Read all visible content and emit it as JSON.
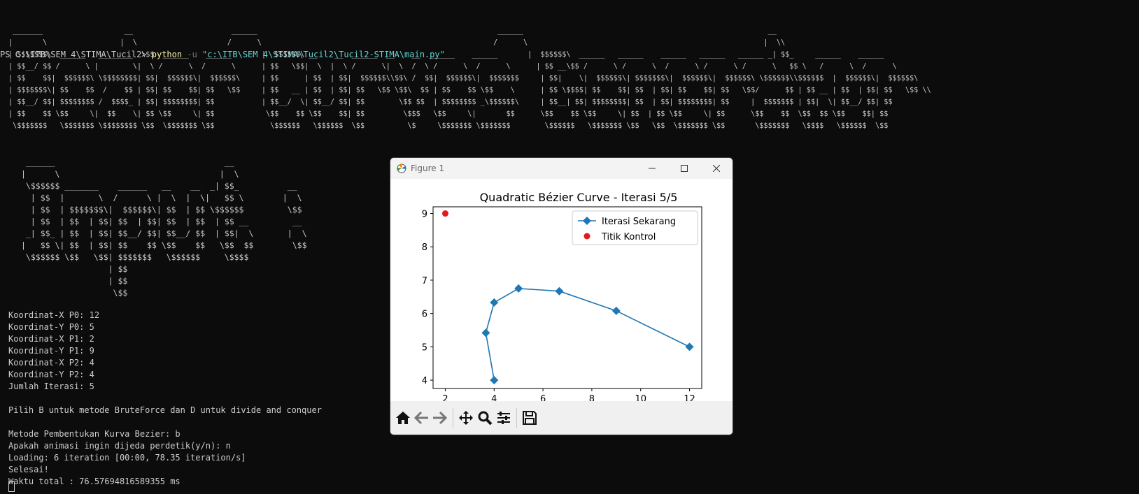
{
  "terminal": {
    "prompt": "PS C:\\ITB\\SEM 4\\STIMA\\Tucil2>",
    "command": "python",
    "flag": "-u",
    "arg": "\"c:\\ITB\\SEM 4\\STIMA\\Tucil2\\Tucil2-STIMA\\main.py\"",
    "banner1": [
      " _______                   __                       ______                                                        ______                                                         __",
      "|       \\                 |  \\                     /      \\                                                      /      \\                                                       |  \\\\",
      "| $$$$$$$\\  ______   ________  \\$$  ______    ______       |  $$$$$$\\ __    __  ______  __    __  ______    ______       |  $$$$$$\\  ______   ______    ______   ______   ______ _| $$_     ______    ______",
      "| $$__/ $$ /      \\ |        \\|  \\ /      \\  /      \\      | $$   \\$$|  \\  |  \\ /      \\|  \\  /  \\ /      \\  /      \\      | $$ __\\$$ /      \\ /      \\  /      \\ /      \\ /      \\   $$ \\   /      \\  /      \\",
      "| $$    $$|  $$$$$$\\ \\$$$$$$$$| $$|  $$$$$$\\|  $$$$$$\\     | $$      | $$  | $$|  $$$$$$\\\\$$\\ /  $$|  $$$$$$\\|  $$$$$$$     | $$|    \\|  $$$$$$\\| $$$$$$$\\|  $$$$$$\\|  $$$$$$\\ \\$$$$$$\\\\$$$$$$  |  $$$$$$\\|  $$$$$$\\",
      "| $$$$$$$\\| $$    $$  /    $$ | $$| $$    $$| $$   \\$$     | $$   __ | $$  | $$| $$   \\$$ \\$$\\  $$ | $$    $$ \\$$    \\      | $$ \\$$$$| $$    $$| $$  | $$| $$    $$| $$   \\$$/      $$ | $$ __ | $$  | $$| $$   \\$$ \\\\",
      "| $$__/ $$| $$$$$$$$ /  $$$$_ | $$| $$$$$$$$| $$           | $$__/  \\| $$__/ $$| $$        \\$$ $$  | $$$$$$$$ _\\$$$$$$\\     | $$__| $$| $$$$$$$$| $$  | $$| $$$$$$$$| $$     |  $$$$$$$ | $$|  \\| $$__/ $$| $$",
      "| $$    $$ \\$$     \\|  $$    \\| $$ \\$$     \\| $$            \\$$    $$ \\$$    $$| $$         \\$$$   \\$$     \\|       $$      \\$$    $$ \\$$     \\| $$  | $$ \\$$     \\| $$      \\$$    $$  \\$$  $$ \\$$    $$| $$",
      " \\$$$$$$$   \\$$$$$$$ \\$$$$$$$$ \\$$  \\$$$$$$$ \\$$             \\$$$$$$   \\$$$$$$  \\$$          \\$     \\$$$$$$$ \\$$$$$$$        \\$$$$$$   \\$$$$$$$ \\$$   \\$$  \\$$$$$$$ \\$$       \\$$$$$$$   \\$$$$   \\$$$$$$  \\$$"
    ],
    "banner2": [
      " ______                                   __",
      "|      \\                                 |  \\",
      " \\$$$$$$ _______    ______   __    __  _| $$_          __",
      "  | $$  |       \\  /      \\ |  \\  |  \\|   $$ \\        |  \\",
      "  | $$  | $$$$$$$\\|  $$$$$$\\| $$  | $$ \\$$$$$$         \\$$",
      "  | $$  | $$  | $$| $$  | $$| $$  | $$  | $$ __         __",
      " _| $$_ | $$  | $$| $$__/ $$| $$__/ $$  | $$|  \\       |  \\",
      "|   $$ \\| $$  | $$| $$    $$ \\$$    $$   \\$$  $$        \\$$",
      " \\$$$$$$ \\$$   \\$$| $$$$$$$   \\$$$$$$     \\$$$$",
      "                  | $$",
      "                  | $$",
      "                   \\$$"
    ],
    "output": [
      "Koordinat-X P0: 12",
      "Koordinat-Y P0: 5",
      "Koordinat-X P1: 2",
      "Koordinat-Y P1: 9",
      "Koordinat-X P2: 4",
      "Koordinat-Y P2: 4",
      "Jumlah Iterasi: 5",
      "",
      "Pilih B untuk metode BruteForce dan D untuk divide and conquer",
      "",
      "Metode Pembentukan Kurva Bezier: b",
      "Apakah animasi ingin dijeda perdetik(y/n): n",
      "Loading: 6 iteration [00:00, 78.35 iteration/s]",
      "Selesai!",
      "Waktu total : 76.57694816589355 ms"
    ]
  },
  "figure_window": {
    "title": "Figure 1",
    "colors": {
      "series": "#1f77b4",
      "control": "#e31a1c"
    }
  },
  "chart_data": {
    "type": "line",
    "title": "Quadratic Bézier Curve - Iterasi 5/5",
    "xlabel": "",
    "ylabel": "",
    "xlim": [
      1.5,
      12.5
    ],
    "ylim": [
      3.75,
      9.2
    ],
    "xticks": [
      2,
      4,
      6,
      8,
      10,
      12
    ],
    "yticks": [
      4,
      5,
      6,
      7,
      8,
      9
    ],
    "legend_position": "top-right",
    "grid": false,
    "series": [
      {
        "name": "Iterasi Sekarang",
        "marker": "diamond",
        "x": [
          4,
          3.66,
          4,
          5,
          6.67,
          9,
          12
        ],
        "y": [
          4,
          5.42,
          6.33,
          6.75,
          6.67,
          6.08,
          5
        ]
      },
      {
        "name": "Titik Kontrol",
        "marker": "circle",
        "x": [
          2
        ],
        "y": [
          9
        ]
      }
    ]
  }
}
